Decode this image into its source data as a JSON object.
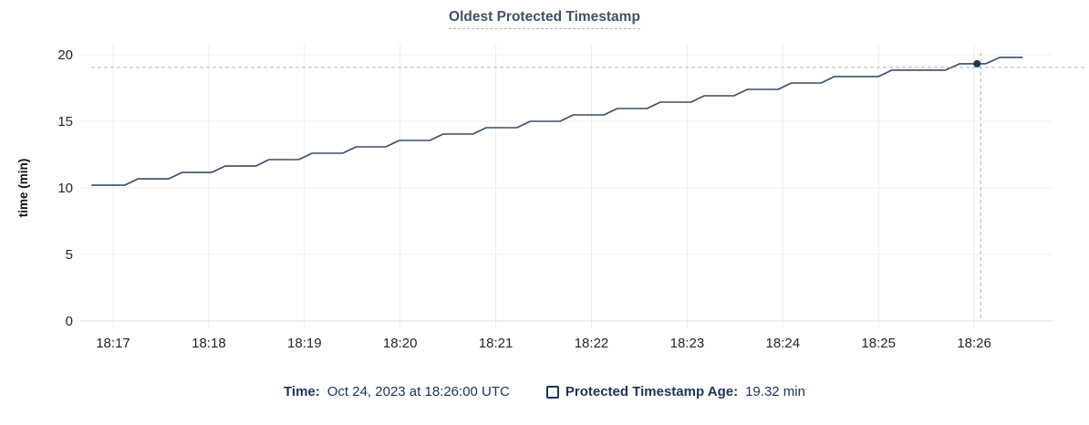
{
  "title": {
    "text": "Oldest Protected Timestamp"
  },
  "legend": {
    "time_label": "Time:",
    "time_value": "Oct 24, 2023 at 18:26:00 UTC",
    "age_label": "Protected Timestamp Age:",
    "age_value": "19.32 min"
  },
  "colors": {
    "line": "#3d4c66",
    "dot": "#233750",
    "crosshair": "#a7b8c2",
    "grid": "#ececec",
    "baseline": "#dedede",
    "axis_text": "#242424",
    "axis_title_text": "#111111",
    "navy": "#1d3456",
    "title_text": "#3e526d"
  },
  "chart_data": {
    "type": "line",
    "title": "Oldest Protected Timestamp",
    "xlabel": "",
    "ylabel": "time (min)",
    "ylim": [
      0,
      20
    ],
    "yticks": [
      0,
      5,
      10,
      15,
      20
    ],
    "xticks": [
      {
        "t": 17,
        "label": "18:17"
      },
      {
        "t": 18,
        "label": "18:18"
      },
      {
        "t": 19,
        "label": "18:19"
      },
      {
        "t": 20,
        "label": "18:20"
      },
      {
        "t": 21,
        "label": "18:21"
      },
      {
        "t": 22,
        "label": "18:22"
      },
      {
        "t": 23,
        "label": "18:23"
      },
      {
        "t": 24,
        "label": "18:24"
      },
      {
        "t": 25,
        "label": "18:25"
      },
      {
        "t": 26,
        "label": "18:26"
      }
    ],
    "grid": true,
    "legend_position": "bottom",
    "series": [
      {
        "name": "Protected Timestamp Age",
        "unit": "min",
        "points": [
          [
            16.78,
            10.2
          ],
          [
            17.12,
            10.2
          ],
          [
            17.26,
            10.68
          ],
          [
            17.58,
            10.68
          ],
          [
            17.72,
            11.16
          ],
          [
            18.03,
            11.16
          ],
          [
            18.17,
            11.64
          ],
          [
            18.49,
            11.64
          ],
          [
            18.63,
            12.12
          ],
          [
            18.94,
            12.12
          ],
          [
            19.08,
            12.6
          ],
          [
            19.4,
            12.6
          ],
          [
            19.54,
            13.08
          ],
          [
            19.85,
            13.08
          ],
          [
            19.99,
            13.56
          ],
          [
            20.31,
            13.56
          ],
          [
            20.45,
            14.04
          ],
          [
            20.76,
            14.04
          ],
          [
            20.9,
            14.52
          ],
          [
            21.22,
            14.52
          ],
          [
            21.36,
            15.0
          ],
          [
            21.67,
            15.0
          ],
          [
            21.81,
            15.48
          ],
          [
            22.13,
            15.48
          ],
          [
            22.27,
            15.96
          ],
          [
            22.58,
            15.96
          ],
          [
            22.72,
            16.44
          ],
          [
            23.04,
            16.44
          ],
          [
            23.18,
            16.92
          ],
          [
            23.49,
            16.92
          ],
          [
            23.63,
            17.4
          ],
          [
            23.95,
            17.4
          ],
          [
            24.09,
            17.88
          ],
          [
            24.4,
            17.88
          ],
          [
            24.54,
            18.36
          ],
          [
            25.0,
            18.36
          ],
          [
            25.14,
            18.84
          ],
          [
            25.7,
            18.84
          ],
          [
            25.85,
            19.32
          ],
          [
            26.12,
            19.32
          ],
          [
            26.27,
            19.8
          ],
          [
            26.5,
            19.8
          ]
        ]
      }
    ],
    "highlight": {
      "t": 26.03,
      "value": 19.32,
      "time": "18:26:00",
      "date": "Oct 24, 2023",
      "tz": "UTC"
    }
  }
}
